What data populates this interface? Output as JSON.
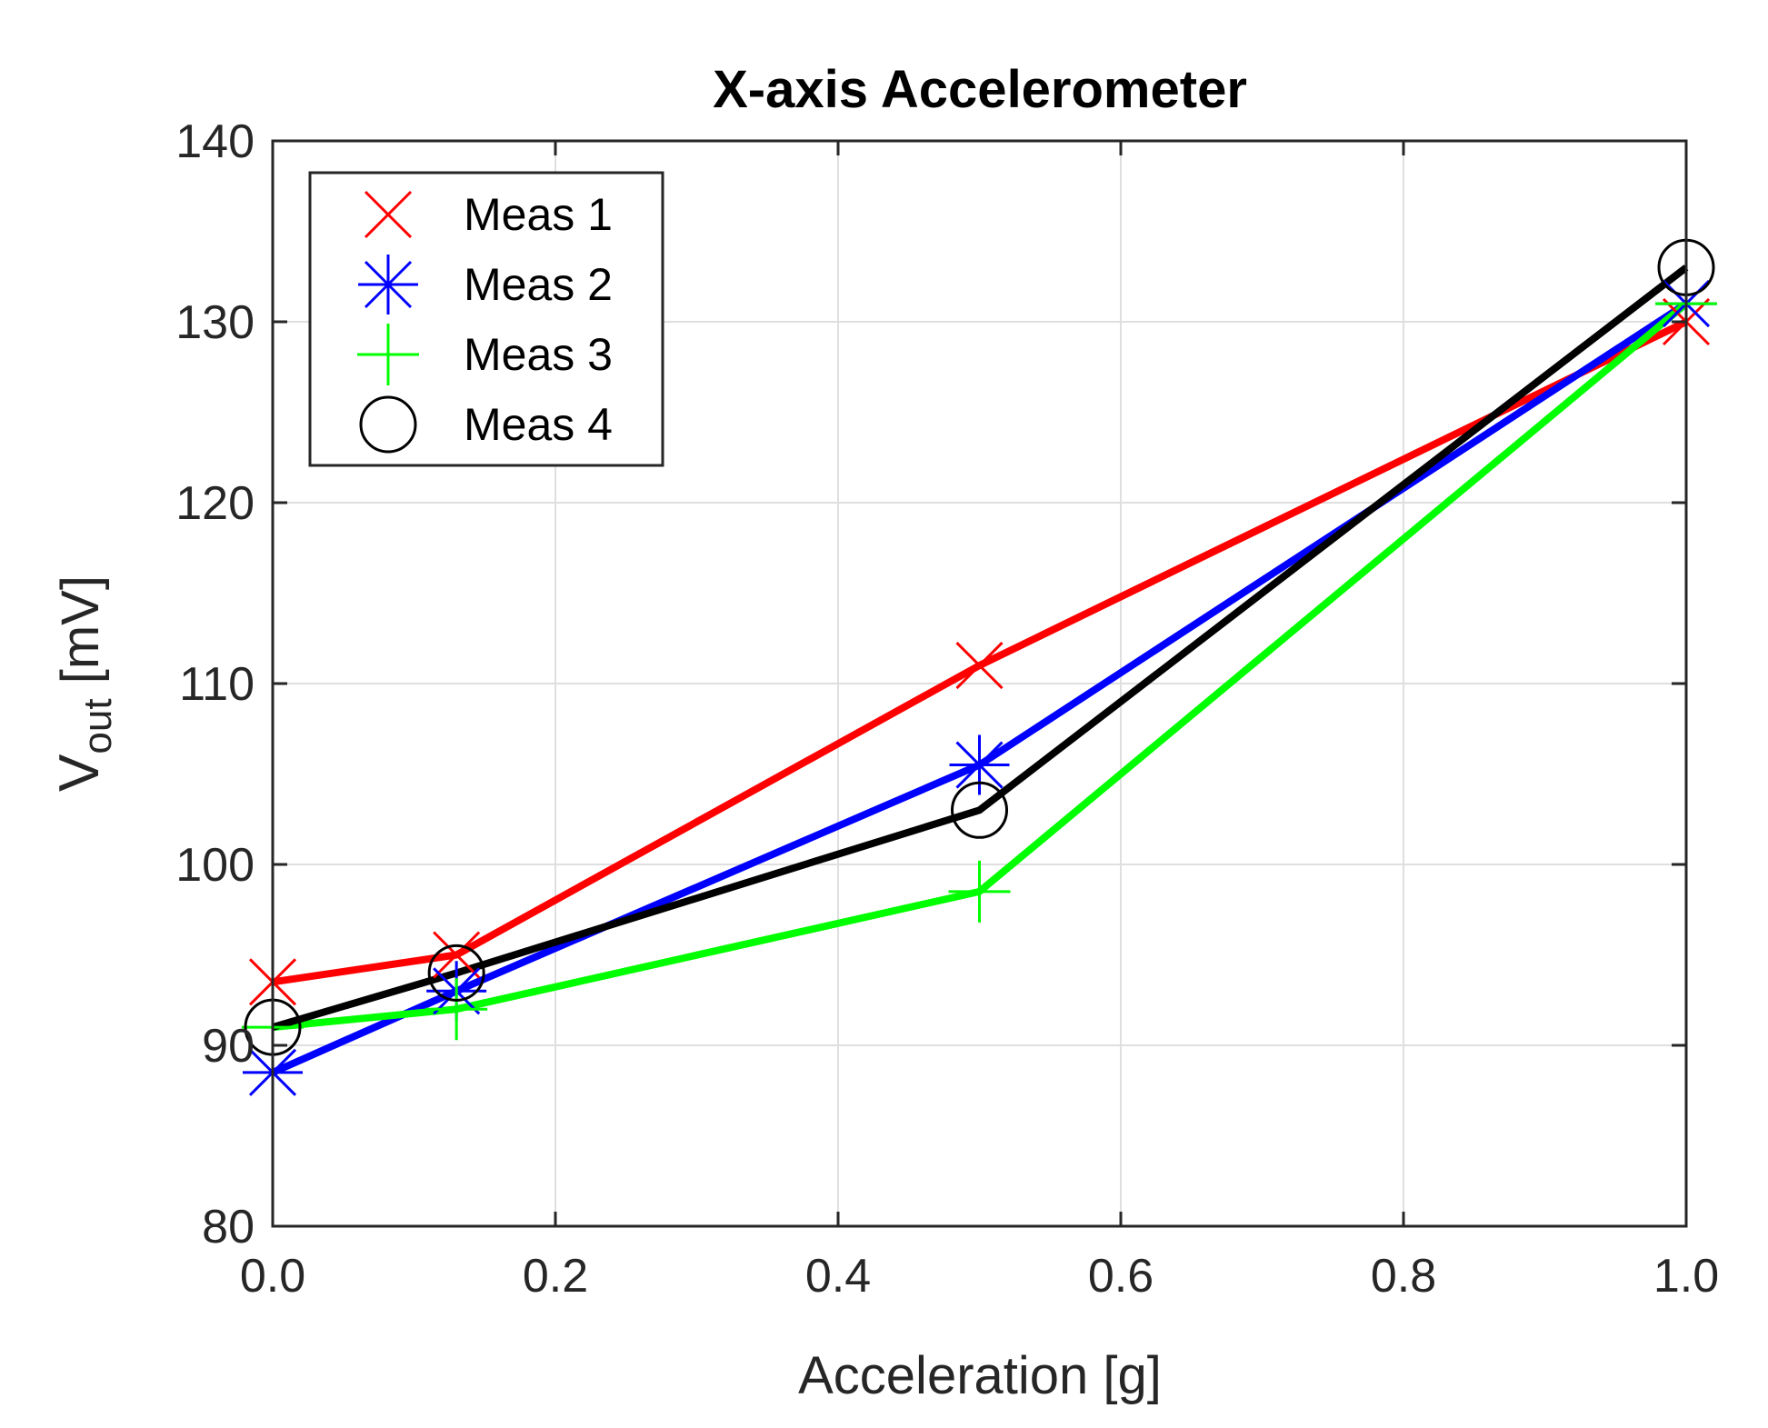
{
  "chart_data": {
    "type": "line",
    "title": "X-axis Accelerometer",
    "xlabel": "Acceleration [g]",
    "ylabel_main": "V",
    "ylabel_sub": "out",
    "ylabel_unit": " [mV]",
    "xlim": [
      0,
      1
    ],
    "ylim": [
      80,
      140
    ],
    "xticks": [
      0,
      0.2,
      0.4,
      0.6,
      0.8,
      1.0
    ],
    "xtick_labels": [
      "0.0",
      "0.2",
      "0.4",
      "0.6",
      "0.8",
      "1.0"
    ],
    "yticks": [
      80,
      90,
      100,
      110,
      120,
      130,
      140
    ],
    "ytick_labels": [
      "80",
      "90",
      "100",
      "110",
      "120",
      "130",
      "140"
    ],
    "grid": true,
    "legend_position": "top-left",
    "x": [
      0,
      0.13,
      0.5,
      1.0
    ],
    "series": [
      {
        "name": "Meas 1",
        "color": "#ff0000",
        "marker": "x-mark",
        "values": [
          93.5,
          95,
          111,
          130
        ]
      },
      {
        "name": "Meas 2",
        "color": "#0000ff",
        "marker": "asterisk",
        "values": [
          88.5,
          93,
          105.5,
          131
        ]
      },
      {
        "name": "Meas 3",
        "color": "#00ff00",
        "marker": "plus",
        "values": [
          91,
          92,
          98.5,
          131
        ]
      },
      {
        "name": "Meas 4",
        "color": "#000000",
        "marker": "circle",
        "values": [
          91,
          94,
          103,
          133
        ]
      }
    ]
  }
}
